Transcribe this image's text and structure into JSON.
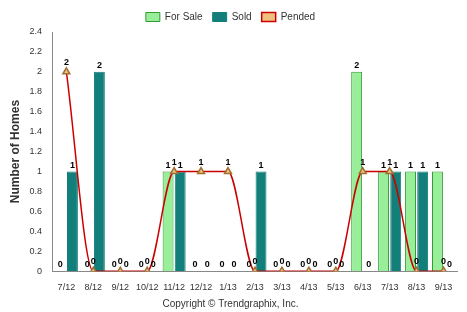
{
  "chart_data": {
    "type": "bar",
    "y_label": "Number of Homes",
    "annotation": "Copyright © Trendgraphix, Inc.",
    "categories": [
      "7/12",
      "8/12",
      "9/12",
      "10/12",
      "11/12",
      "12/12",
      "1/13",
      "2/13",
      "3/13",
      "4/13",
      "5/13",
      "6/13",
      "7/13",
      "8/13",
      "9/13"
    ],
    "series": [
      {
        "name": "For Sale",
        "type": "bar",
        "color": "#99ee99",
        "values": [
          0,
          0,
          0,
          0,
          1,
          0,
          0,
          0,
          0,
          0,
          0,
          2,
          1,
          1,
          1
        ]
      },
      {
        "name": "Sold",
        "type": "bar",
        "color": "#137f7a",
        "values": [
          1,
          2,
          0,
          0,
          1,
          0,
          0,
          1,
          0,
          0,
          0,
          0,
          1,
          1,
          0
        ]
      },
      {
        "name": "Pended",
        "type": "line",
        "color": "#cc0000",
        "marker": "triangle",
        "values": [
          2,
          0,
          0,
          0,
          1,
          1,
          1,
          0,
          0,
          0,
          0,
          1,
          1,
          0,
          0
        ]
      }
    ],
    "ylim": [
      0,
      2.4
    ],
    "yticks": [
      0,
      0.2,
      0.4,
      0.6,
      0.8,
      1,
      1.2,
      1.4,
      1.6,
      1.8,
      2,
      2.2,
      2.4
    ],
    "grid": false,
    "legend": "top",
    "data_labels": true
  }
}
